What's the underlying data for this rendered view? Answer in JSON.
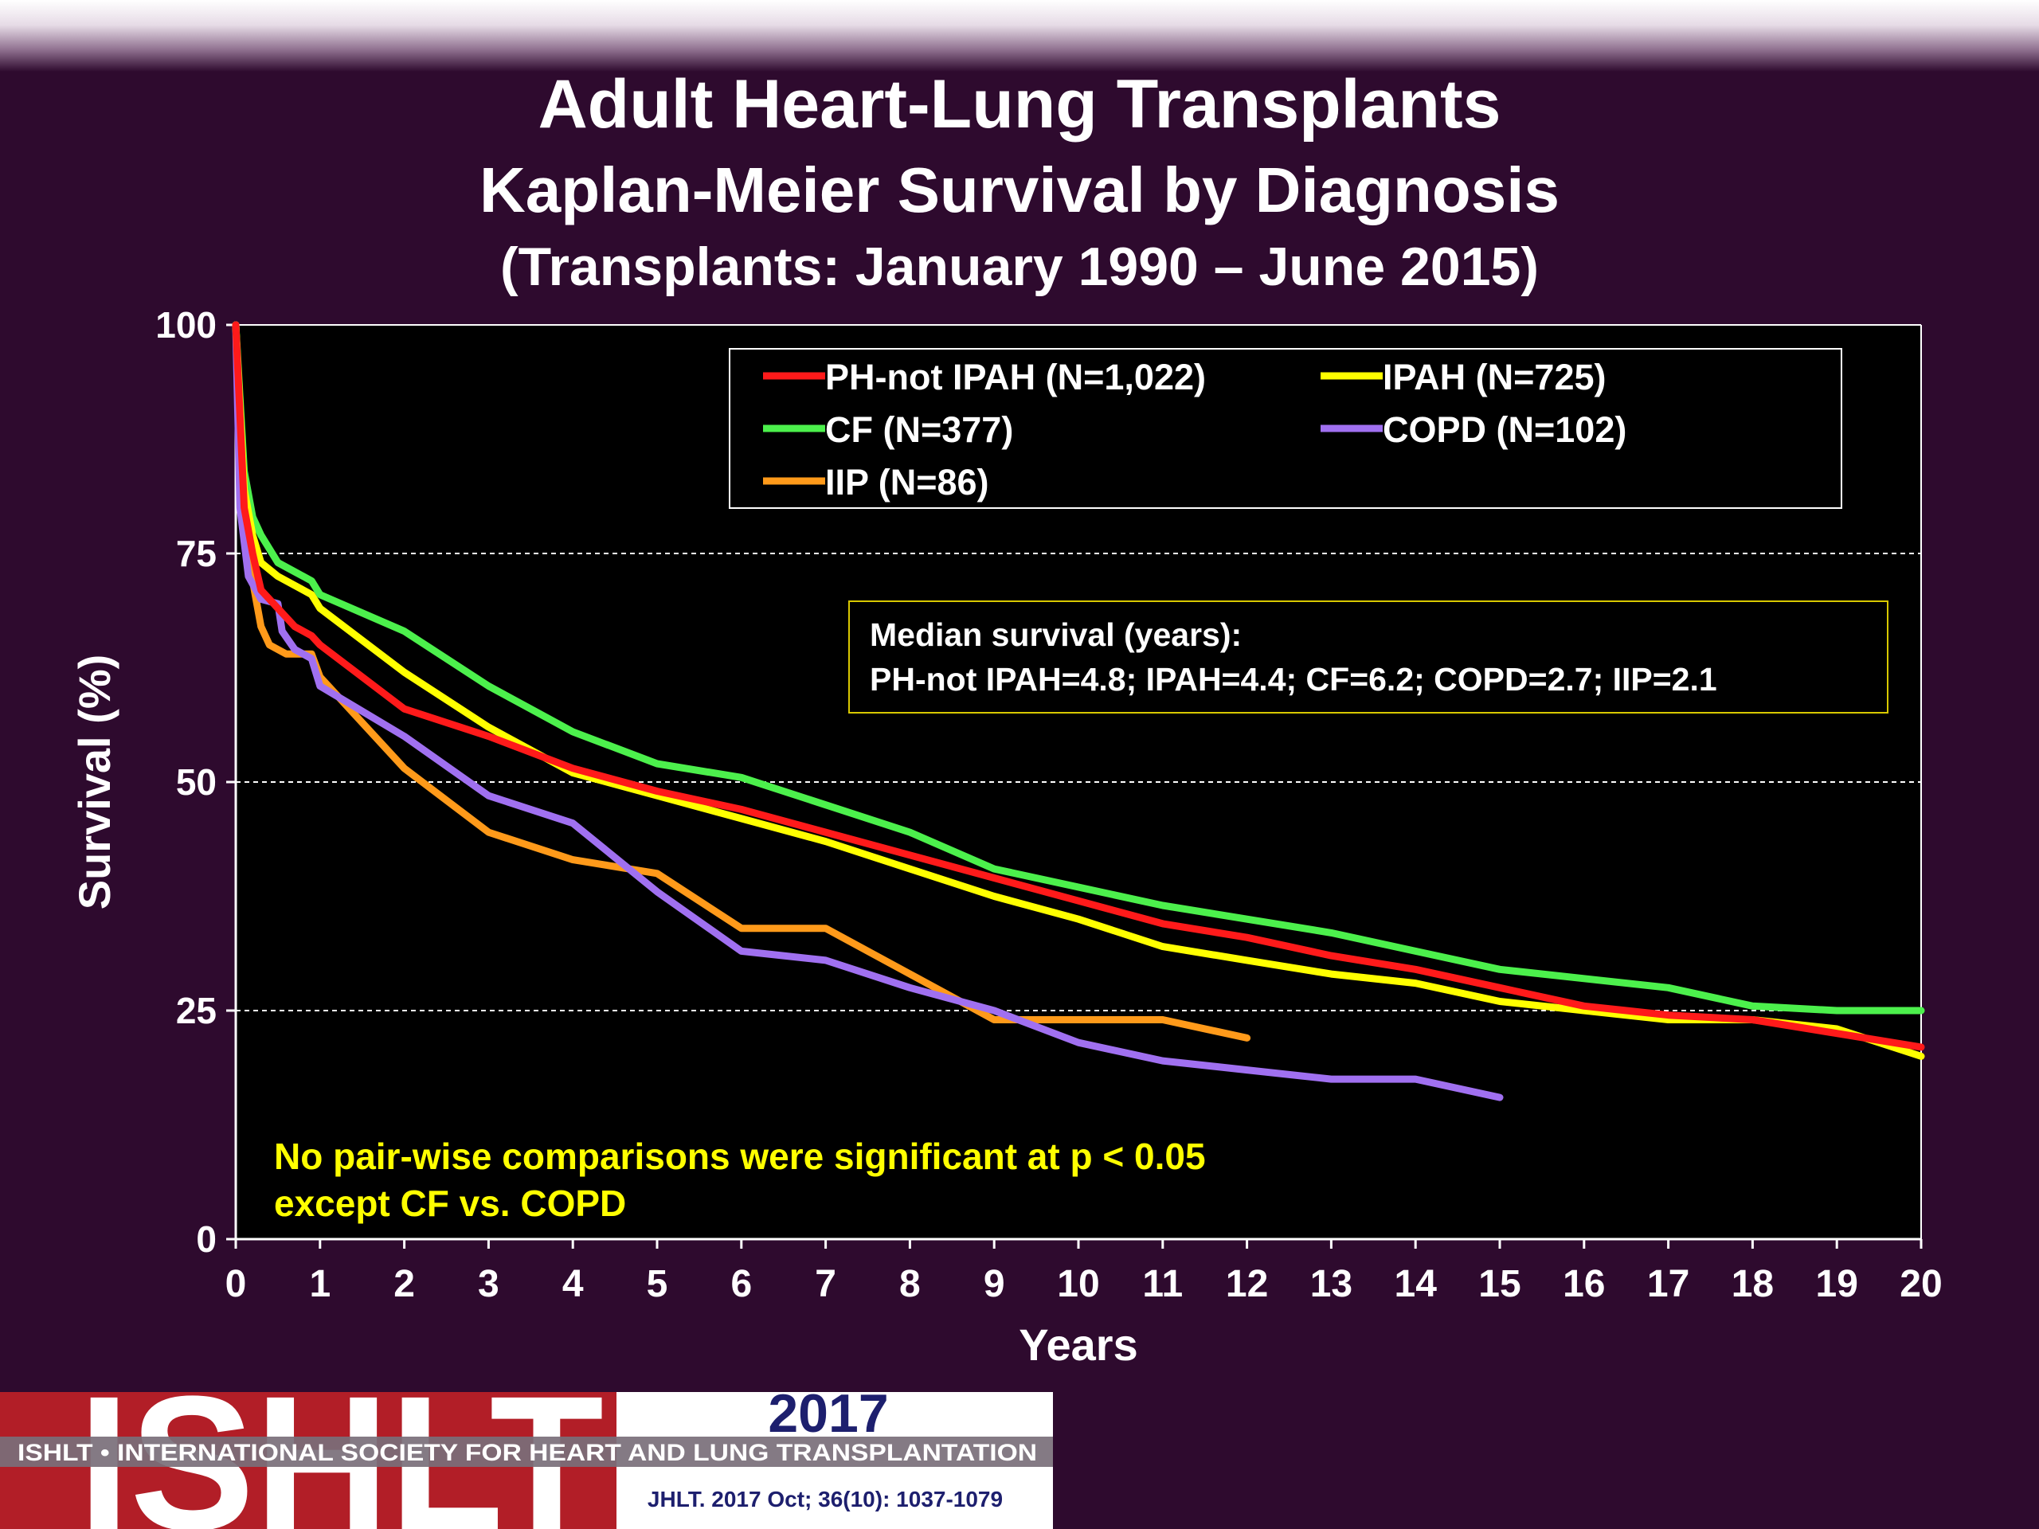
{
  "title_lines": [
    "Adult Heart-Lung Transplants",
    "Kaplan-Meier Survival by Diagnosis",
    "(Transplants: January 1990 – June 2015)"
  ],
  "chart_data": {
    "type": "line",
    "xlabel": "Years",
    "ylabel": "Survival (%)",
    "xlim": [
      0,
      20
    ],
    "ylim": [
      0,
      100
    ],
    "xticks": [
      0,
      1,
      2,
      3,
      4,
      5,
      6,
      7,
      8,
      9,
      10,
      11,
      12,
      13,
      14,
      15,
      16,
      17,
      18,
      19,
      20
    ],
    "yticks": [
      0,
      25,
      50,
      75,
      100
    ],
    "grid": "horizontal dashed at 25, 50, 75",
    "legend_position": "top-right",
    "series": [
      {
        "name": "PH-not IPAH (N=1,022)",
        "color": "#ff1a1a",
        "x": [
          0,
          0.1,
          0.2,
          0.3,
          0.5,
          0.7,
          0.9,
          1,
          2,
          3,
          4,
          5,
          6,
          7,
          8,
          9,
          10,
          11,
          12,
          13,
          14,
          15,
          16,
          17,
          18,
          19,
          20
        ],
        "y": [
          100,
          80,
          75,
          71,
          69,
          67,
          66,
          65,
          58,
          55,
          51.5,
          49,
          47,
          44.5,
          42,
          39.5,
          37,
          34.5,
          33,
          31,
          29.5,
          27.5,
          25.5,
          24.5,
          24,
          22.5,
          21
        ]
      },
      {
        "name": "IPAH (N=725)",
        "color": "#ffff00",
        "x": [
          0,
          0.1,
          0.2,
          0.3,
          0.5,
          0.7,
          0.9,
          1,
          2,
          3,
          4,
          5,
          6,
          7,
          8,
          9,
          10,
          11,
          12,
          13,
          14,
          15,
          16,
          17,
          18,
          19,
          20
        ],
        "y": [
          100,
          82,
          77,
          74,
          72.5,
          71.5,
          70.5,
          69,
          62,
          56,
          51,
          48.5,
          46,
          43.5,
          40.5,
          37.5,
          35,
          32,
          30.5,
          29,
          28,
          26,
          25,
          24,
          24,
          23,
          20
        ]
      },
      {
        "name": "CF (N=377)",
        "color": "#4cf04c",
        "x": [
          0,
          0.1,
          0.2,
          0.3,
          0.5,
          0.7,
          0.9,
          1,
          2,
          3,
          4,
          5,
          6,
          7,
          8,
          9,
          10,
          11,
          12,
          13,
          14,
          15,
          16,
          17,
          18,
          19,
          20
        ],
        "y": [
          100,
          84,
          79,
          77,
          74,
          73,
          72,
          70.5,
          66.5,
          60.5,
          55.5,
          52,
          50.5,
          47.5,
          44.5,
          40.5,
          38.5,
          36.5,
          35,
          33.5,
          31.5,
          29.5,
          28.5,
          27.5,
          25.5,
          25,
          25
        ]
      },
      {
        "name": "COPD (N=102)",
        "color": "#a070f0",
        "x": [
          0,
          0.05,
          0.15,
          0.3,
          0.5,
          0.55,
          0.7,
          0.9,
          1,
          2,
          3,
          4,
          5,
          6,
          7,
          8,
          9,
          10,
          11,
          12,
          13,
          14,
          15
        ],
        "y": [
          100,
          80,
          72.5,
          70,
          69.5,
          66.5,
          64.5,
          63.5,
          60.5,
          55,
          48.5,
          45.5,
          38,
          31.5,
          30.5,
          27.5,
          25,
          21.5,
          19.5,
          18.5,
          17.5,
          17.5,
          15.5
        ]
      },
      {
        "name": "IIP (N=86)",
        "color": "#ff9a1a",
        "x": [
          0,
          0.1,
          0.2,
          0.3,
          0.4,
          0.6,
          0.8,
          0.9,
          1,
          2,
          3,
          4,
          5,
          6,
          7,
          8,
          9,
          10,
          11,
          12
        ],
        "y": [
          100,
          80,
          72,
          67,
          65,
          64,
          64,
          64,
          61.5,
          51.5,
          44.5,
          41.5,
          40,
          34,
          34,
          29,
          24,
          24,
          24,
          22
        ]
      }
    ],
    "annotations": [
      "Median survival (years):",
      "PH-not IPAH=4.8; IPAH=4.4; CF=6.2; COPD=2.7; IIP=2.1",
      "No pair-wise comparisons were significant at p < 0.05",
      "except CF vs. COPD"
    ]
  },
  "footer": {
    "logo_text": "ISHLT",
    "society_name": "ISHLT • INTERNATIONAL SOCIETY FOR HEART AND LUNG TRANSPLANTATION",
    "year": "2017",
    "citation": "JHLT. 2017 Oct; 36(10): 1037-1079"
  },
  "colors": {
    "background": "#2e0a2e",
    "plot_background": "#000000",
    "annotation_box_border": "#d8c800",
    "annotation_highlight": "#ffff00",
    "logo_red": "#b21e27"
  }
}
